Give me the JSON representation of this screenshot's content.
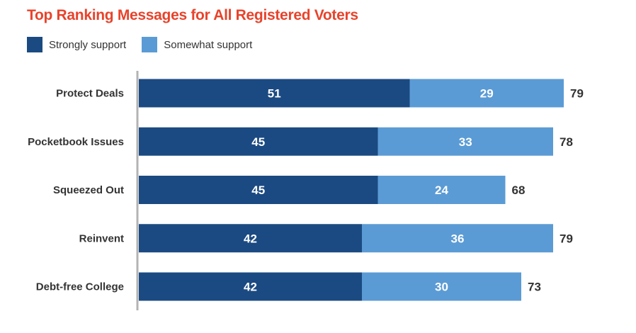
{
  "chart_data": {
    "type": "bar",
    "orientation": "horizontal",
    "stacked": true,
    "title": "Top Ranking Messages for All Registered Voters",
    "categories": [
      "Protect Deals",
      "Pocketbook Issues",
      "Squeezed Out",
      "Reinvent",
      "Debt-free College"
    ],
    "series": [
      {
        "name": "Strongly support",
        "values": [
          51,
          45,
          45,
          42,
          42
        ],
        "color": "#1b4a82"
      },
      {
        "name": "Somewhat support",
        "values": [
          29,
          33,
          24,
          36,
          30
        ],
        "color": "#5b9bd5"
      }
    ],
    "totals": [
      79,
      78,
      68,
      79,
      73
    ],
    "xlim": [
      0,
      80
    ],
    "legend_position": "top-left",
    "grid": false,
    "colors": {
      "title": "#e8432b",
      "axis": "#b3b3b3",
      "label_text": "#333333",
      "bar_label": "#ffffff"
    }
  }
}
